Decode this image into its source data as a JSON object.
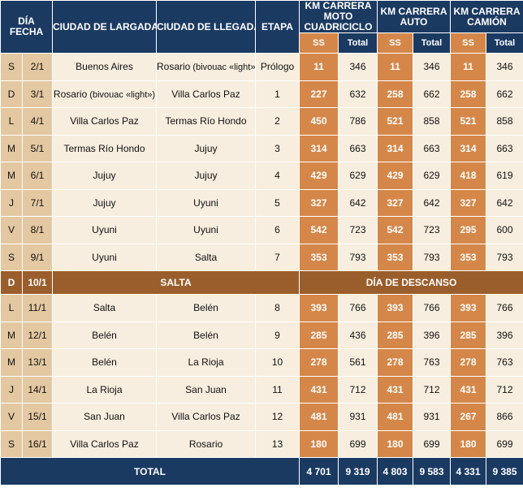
{
  "header": {
    "dia_fecha": "DÍA\nFECHA",
    "ciudad_largada": "CIUDAD DE LARGADA",
    "ciudad_llegada": "CIUDAD DE LLEGADA",
    "etapa": "ETAPA",
    "km_moto": "KM CARRERA\nMOTO\nCUADRICICLO",
    "km_auto": "KM CARRERA\nAUTO",
    "km_camion": "KM CARRERA\nCAMIÓN",
    "ss": "SS",
    "total": "Total"
  },
  "rows": [
    {
      "dia": "S",
      "fecha": "2/1",
      "largada": "Buenos Aires",
      "largada_note": "",
      "llegada": "Rosario",
      "llegada_note": " (bivouac «light»)",
      "etapa": "Prólogo",
      "moto_ss": "11",
      "moto_total": "346",
      "auto_ss": "11",
      "auto_total": "346",
      "camion_ss": "11",
      "camion_total": "346"
    },
    {
      "dia": "D",
      "fecha": "3/1",
      "largada": "Rosario",
      "largada_note": " (bivouac «light»)",
      "llegada": "Villa Carlos Paz",
      "llegada_note": "",
      "etapa": "1",
      "moto_ss": "227",
      "moto_total": "632",
      "auto_ss": "258",
      "auto_total": "662",
      "camion_ss": "258",
      "camion_total": "662"
    },
    {
      "dia": "L",
      "fecha": "4/1",
      "largada": "Villa Carlos Paz",
      "largada_note": "",
      "llegada": "Termas Río Hondo",
      "llegada_note": "",
      "etapa": "2",
      "moto_ss": "450",
      "moto_total": "786",
      "auto_ss": "521",
      "auto_total": "858",
      "camion_ss": "521",
      "camion_total": "858"
    },
    {
      "dia": "M",
      "fecha": "5/1",
      "largada": "Termas Río Hondo",
      "largada_note": "",
      "llegada": "Jujuy",
      "llegada_note": "",
      "etapa": "3",
      "moto_ss": "314",
      "moto_total": "663",
      "auto_ss": "314",
      "auto_total": "663",
      "camion_ss": "314",
      "camion_total": "663"
    },
    {
      "dia": "M",
      "fecha": "6/1",
      "largada": "Jujuy",
      "largada_note": "",
      "llegada": "Jujuy",
      "llegada_note": "",
      "etapa": "4",
      "moto_ss": "429",
      "moto_total": "629",
      "auto_ss": "429",
      "auto_total": "629",
      "camion_ss": "418",
      "camion_total": "619"
    },
    {
      "dia": "J",
      "fecha": "7/1",
      "largada": "Jujuy",
      "largada_note": "",
      "llegada": "Uyuni",
      "llegada_note": "",
      "etapa": "5",
      "moto_ss": "327",
      "moto_total": "642",
      "auto_ss": "327",
      "auto_total": "642",
      "camion_ss": "327",
      "camion_total": "642"
    },
    {
      "dia": "V",
      "fecha": "8/1",
      "largada": "Uyuni",
      "largada_note": "",
      "llegada": "Uyuni",
      "llegada_note": "",
      "etapa": "6",
      "moto_ss": "542",
      "moto_total": "723",
      "auto_ss": "542",
      "auto_total": "723",
      "camion_ss": "295",
      "camion_total": "600"
    },
    {
      "dia": "S",
      "fecha": "9/1",
      "largada": "Uyuni",
      "largada_note": "",
      "llegada": "Salta",
      "llegada_note": "",
      "etapa": "7",
      "moto_ss": "353",
      "moto_total": "793",
      "auto_ss": "353",
      "auto_total": "793",
      "camion_ss": "353",
      "camion_total": "793"
    }
  ],
  "rest_day": {
    "dia": "D",
    "fecha": "10/1",
    "city": "SALTA",
    "label": "DÍA DE DESCANSO"
  },
  "rows2": [
    {
      "dia": "L",
      "fecha": "11/1",
      "largada": "Salta",
      "llegada": "Belén",
      "etapa": "8",
      "moto_ss": "393",
      "moto_total": "766",
      "auto_ss": "393",
      "auto_total": "766",
      "camion_ss": "393",
      "camion_total": "766"
    },
    {
      "dia": "M",
      "fecha": "12/1",
      "largada": "Belén",
      "llegada": "Belén",
      "etapa": "9",
      "moto_ss": "285",
      "moto_total": "436",
      "auto_ss": "285",
      "auto_total": "396",
      "camion_ss": "285",
      "camion_total": "396"
    },
    {
      "dia": "M",
      "fecha": "13/1",
      "largada": "Belén",
      "llegada": "La Rioja",
      "etapa": "10",
      "moto_ss": "278",
      "moto_total": "561",
      "auto_ss": "278",
      "auto_total": "763",
      "camion_ss": "278",
      "camion_total": "763"
    },
    {
      "dia": "J",
      "fecha": "14/1",
      "largada": "La Rioja",
      "llegada": "San Juan",
      "etapa": "11",
      "moto_ss": "431",
      "moto_total": "712",
      "auto_ss": "431",
      "auto_total": "712",
      "camion_ss": "431",
      "camion_total": "712"
    },
    {
      "dia": "V",
      "fecha": "15/1",
      "largada": "San Juan",
      "llegada": "Villa Carlos Paz",
      "etapa": "12",
      "moto_ss": "481",
      "moto_total": "931",
      "auto_ss": "481",
      "auto_total": "931",
      "camion_ss": "267",
      "camion_total": "866"
    },
    {
      "dia": "S",
      "fecha": "16/1",
      "largada": "Villa Carlos Paz",
      "llegada": "Rosario",
      "etapa": "13",
      "moto_ss": "180",
      "moto_total": "699",
      "auto_ss": "180",
      "auto_total": "699",
      "camion_ss": "180",
      "camion_total": "699"
    }
  ],
  "totals": {
    "label": "TOTAL",
    "moto_ss": "4 701",
    "moto_total": "9 319",
    "auto_ss": "4 803",
    "auto_total": "9 583",
    "camion_ss": "4 331",
    "camion_total": "9 385"
  },
  "colors": {
    "header_navy": "#1b3a62",
    "ss_orange": "#d58749",
    "row_dark": "#e3c8a2",
    "row_light": "#f7eedf",
    "rest_brown": "#9a5e2c"
  }
}
